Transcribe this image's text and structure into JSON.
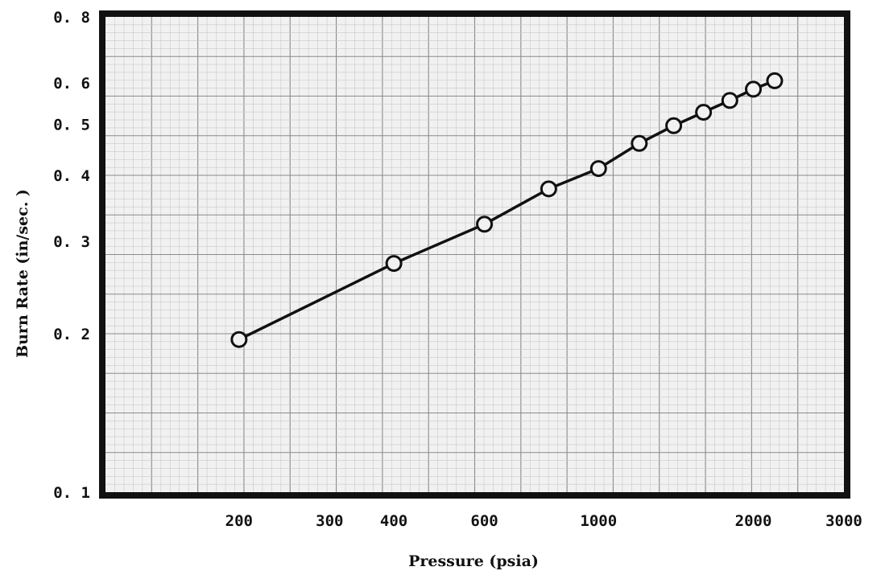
{
  "chart_data": {
    "type": "line",
    "title": "",
    "xlabel": "Pressure (psia)",
    "ylabel": "Burn Rate (in/sec. )",
    "x_scale": "log",
    "y_scale": "log",
    "xlim": [
      110,
      3000
    ],
    "ylim": [
      0.1,
      0.8
    ],
    "grid": true,
    "x_ticks": [
      {
        "value": 200,
        "label": "200"
      },
      {
        "value": 300,
        "label": "300"
      },
      {
        "value": 400,
        "label": "400"
      },
      {
        "value": 600,
        "label": "600"
      },
      {
        "value": 1000,
        "label": "1000"
      },
      {
        "value": 2000,
        "label": "2000"
      },
      {
        "value": 3000,
        "label": "3000"
      }
    ],
    "y_ticks": [
      {
        "value": 0.1,
        "label": "0. 1"
      },
      {
        "value": 0.2,
        "label": "0. 2"
      },
      {
        "value": 0.3,
        "label": "0. 3"
      },
      {
        "value": 0.4,
        "label": "0. 4"
      },
      {
        "value": 0.5,
        "label": "0. 5"
      },
      {
        "value": 0.6,
        "label": "0. 6"
      },
      {
        "value": 0.8,
        "label": "0. 8"
      }
    ],
    "series": [
      {
        "name": "",
        "marker": "open-circle",
        "x": [
          200,
          400,
          600,
          800,
          1000,
          1200,
          1400,
          1600,
          1800,
          2000,
          2200
        ],
        "y": [
          0.195,
          0.272,
          0.323,
          0.377,
          0.412,
          0.46,
          0.497,
          0.527,
          0.555,
          0.583,
          0.605
        ]
      }
    ]
  }
}
